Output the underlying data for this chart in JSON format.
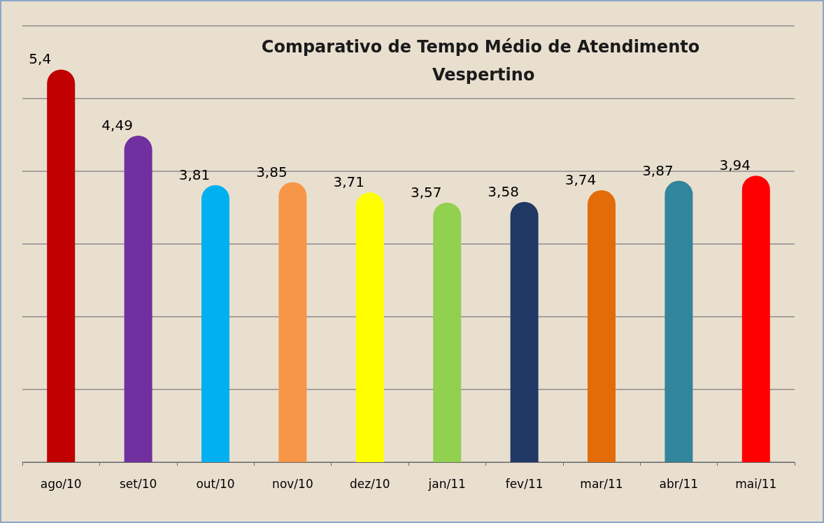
{
  "chart_data": {
    "type": "bar",
    "title": "Comparativo de Tempo Médio de Atendimento Vespertino",
    "categories": [
      "ago/10",
      "set/10",
      "out/10",
      "nov/10",
      "dez/10",
      "jan/11",
      "fev/11",
      "mar/11",
      "abr/11",
      "mai/11"
    ],
    "values": [
      5.4,
      4.49,
      3.81,
      3.85,
      3.71,
      3.57,
      3.58,
      3.74,
      3.87,
      3.94
    ],
    "value_labels": [
      "5,4",
      "4,49",
      "3,81",
      "3,85",
      "3,71",
      "3,57",
      "3,58",
      "3,74",
      "3,87",
      "3,94"
    ],
    "colors": [
      "#c00000",
      "#7030a0",
      "#00b0f0",
      "#f79646",
      "#ffff00",
      "#92d050",
      "#1f3864",
      "#e36c09",
      "#31859c",
      "#ff0000"
    ],
    "ylim": [
      0,
      6
    ],
    "yticks": [
      {
        "value": 0,
        "label": null
      },
      {
        "value": 1,
        "label": null
      },
      {
        "value": 2,
        "label": null
      },
      {
        "value": 3,
        "label": null
      },
      {
        "value": 4,
        "label": null
      },
      {
        "value": 5,
        "label": null
      },
      {
        "value": 6,
        "label": null
      }
    ],
    "tick_labels": "x",
    "grid": "y"
  }
}
